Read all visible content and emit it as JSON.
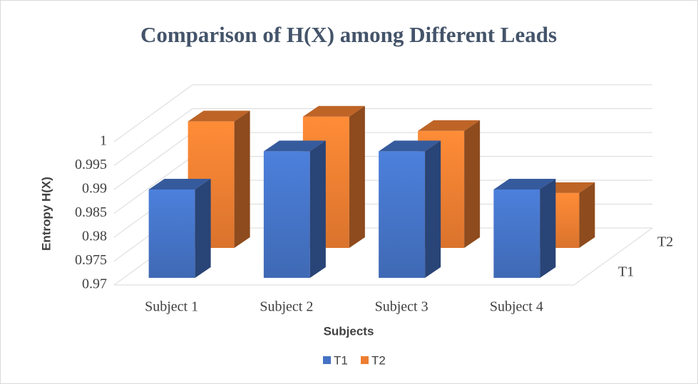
{
  "chart_data": {
    "type": "bar3d",
    "title": "Comparison of H(X) among Different Leads",
    "x_label": "Subjects",
    "y_label": "Entropy H(X)",
    "categories": [
      "Subject 1",
      "Subject 2",
      "Subject 3",
      "Subject 4"
    ],
    "series": [
      {
        "name": "T1",
        "color": "#4472c4",
        "values": [
          0.99,
          0.998,
          0.998,
          0.99
        ]
      },
      {
        "name": "T2",
        "color": "#ed7d31",
        "values": [
          0.998,
          0.999,
          0.996,
          0.983
        ]
      }
    ],
    "ylim": [
      0.97,
      1
    ],
    "yticks": [
      0.97,
      0.975,
      0.98,
      0.985,
      0.99,
      0.995,
      1
    ],
    "grid": true,
    "legend": "bottom"
  }
}
